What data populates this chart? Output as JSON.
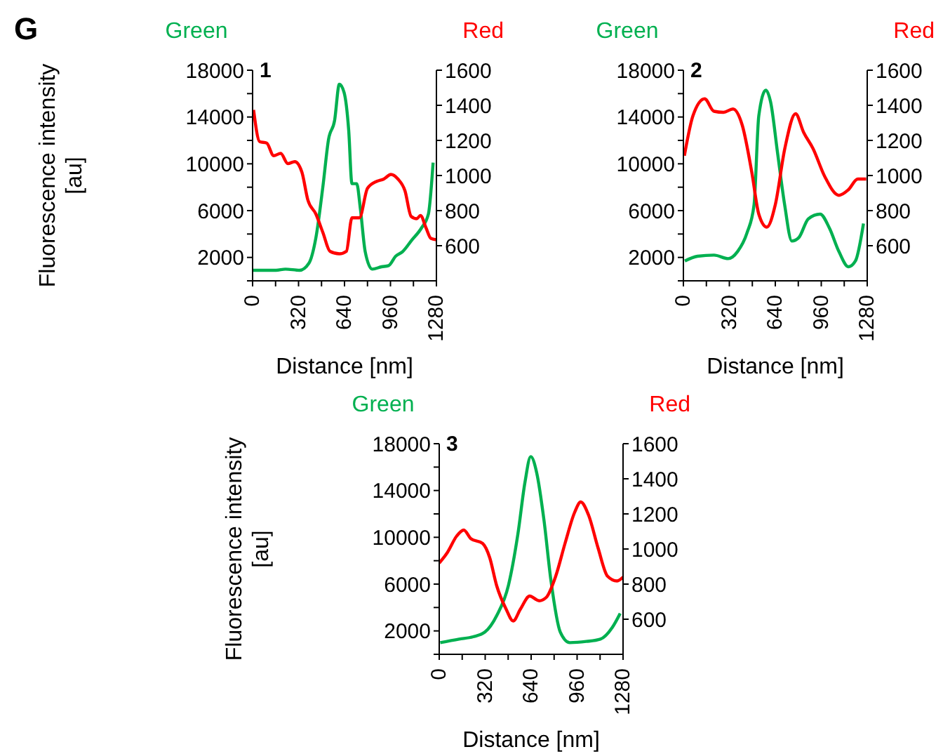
{
  "chart_data": [
    {
      "type": "line",
      "title": "1",
      "annotations": [
        "G"
      ],
      "xlabel": "Distance [nm]",
      "ylabel": "Fluorescence intensity [au]",
      "xlim": [
        0,
        1280
      ],
      "xticks": [
        0,
        {
          "value": 160,
          "label": null
        },
        320,
        {
          "value": 480,
          "label": null
        },
        640,
        {
          "value": 800,
          "label": null
        },
        960,
        {
          "value": 1120,
          "label": null
        },
        1280
      ],
      "ylim": [
        0,
        18000
      ],
      "yticks": [
        {
          "value": 0,
          "label": null
        },
        2000,
        {
          "value": 4000,
          "label": null
        },
        6000,
        {
          "value": 8000,
          "label": null
        },
        10000,
        {
          "value": 12000,
          "label": null
        },
        14000,
        {
          "value": 16000,
          "label": null
        },
        18000
      ],
      "y2lim": [
        400,
        1600
      ],
      "y2ticks": [
        600,
        800,
        1000,
        1200,
        1400,
        1600
      ],
      "grid": false,
      "legend": false,
      "marker": "none",
      "line_style": "solid",
      "series": [
        {
          "name": "Green",
          "color": "#00b050",
          "x": [
            0,
            163,
            229,
            327,
            392,
            441,
            490,
            529,
            571,
            604,
            637,
            669,
            692,
            725,
            751,
            784,
            833,
            898,
            947,
            996,
            1045,
            1110,
            1175,
            1224,
            1257
          ],
          "values": [
            900,
            900,
            1000,
            900,
            1500,
            3700,
            8100,
            12100,
            13700,
            16800,
            16100,
            12900,
            8300,
            8300,
            6100,
            2500,
            1000,
            1200,
            1300,
            2100,
            2500,
            3500,
            4500,
            5700,
            10100
          ]
        },
        {
          "name": "Red",
          "color": "#ff0000",
          "axis": "y2",
          "x": [
            7,
            49,
            98,
            147,
            196,
            245,
            294,
            343,
            385,
            441,
            490,
            539,
            604,
            653,
            692,
            744,
            800,
            865,
            914,
            963,
            1012,
            1061,
            1104,
            1143,
            1169,
            1208,
            1241,
            1280
          ],
          "values": [
            1374,
            1193,
            1185,
            1113,
            1126,
            1068,
            1079,
            1020,
            860,
            780,
            674,
            568,
            554,
            568,
            759,
            759,
            927,
            967,
            980,
            1006,
            980,
            913,
            767,
            754,
            772,
            701,
            642,
            634
          ]
        }
      ]
    },
    {
      "type": "line",
      "title": "2",
      "xlabel": "Distance [nm]",
      "xlim": [
        0,
        1280
      ],
      "xticks": [
        0,
        {
          "value": 160,
          "label": null
        },
        320,
        {
          "value": 480,
          "label": null
        },
        640,
        {
          "value": 800,
          "label": null
        },
        960,
        {
          "value": 1120,
          "label": null
        },
        1280
      ],
      "ylim": [
        0,
        18000
      ],
      "yticks": [
        {
          "value": 0,
          "label": null
        },
        2000,
        {
          "value": 4000,
          "label": null
        },
        6000,
        {
          "value": 8000,
          "label": null
        },
        10000,
        {
          "value": 12000,
          "label": null
        },
        14000,
        {
          "value": 16000,
          "label": null
        },
        18000
      ],
      "y2lim": [
        400,
        1600
      ],
      "y2ticks": [
        600,
        800,
        1000,
        1200,
        1400,
        1600
      ],
      "grid": false,
      "legend": false,
      "marker": "none",
      "line_style": "solid",
      "series": [
        {
          "name": "Green",
          "color": "#00b050",
          "x": [
            10,
            98,
            213,
            312,
            377,
            443,
            492,
            525,
            574,
            607,
            656,
            705,
            755,
            804,
            870,
            952,
            1017,
            1083,
            1149,
            1198,
            1254
          ],
          "values": [
            1700,
            2100,
            2200,
            1900,
            2500,
            4100,
            6500,
            14100,
            16300,
            15300,
            10900,
            6500,
            3400,
            3700,
            5300,
            5700,
            4500,
            2500,
            1200,
            1700,
            4900
          ]
        },
        {
          "name": "Red",
          "color": "#ff0000",
          "axis": "y2",
          "x": [
            7,
            66,
            148,
            213,
            279,
            345,
            410,
            476,
            525,
            581,
            640,
            706,
            781,
            837,
            903,
            985,
            1083,
            1149,
            1214,
            1273
          ],
          "values": [
            1113,
            1339,
            1437,
            1366,
            1360,
            1379,
            1286,
            1020,
            780,
            706,
            834,
            1153,
            1352,
            1246,
            1153,
            993,
            887,
            919,
            980,
            980
          ]
        }
      ]
    },
    {
      "type": "line",
      "title": "3",
      "xlabel": "Distance [nm]",
      "ylabel": "Fluorescence intensity [au]",
      "xlim": [
        0,
        1280
      ],
      "xticks": [
        0,
        {
          "value": 160,
          "label": null
        },
        320,
        {
          "value": 480,
          "label": null
        },
        640,
        {
          "value": 800,
          "label": null
        },
        960,
        {
          "value": 1120,
          "label": null
        },
        1280
      ],
      "ylim": [
        0,
        18000
      ],
      "yticks": [
        {
          "value": 0,
          "label": null
        },
        2000,
        {
          "value": 4000,
          "label": null
        },
        6000,
        {
          "value": 8000,
          "label": null
        },
        10000,
        {
          "value": 12000,
          "label": null
        },
        14000,
        {
          "value": 16000,
          "label": null
        },
        18000
      ],
      "y2lim": [
        400,
        1600
      ],
      "y2ticks": [
        600,
        800,
        1000,
        1200,
        1400,
        1600
      ],
      "grid": false,
      "legend": false,
      "marker": "none",
      "line_style": "solid",
      "series": [
        {
          "name": "Green",
          "color": "#00b050",
          "x": [
            7,
            138,
            236,
            318,
            400,
            482,
            548,
            597,
            637,
            679,
            729,
            778,
            843,
            909,
            1024,
            1122,
            1205,
            1260
          ],
          "values": [
            1000,
            1300,
            1500,
            1900,
            3300,
            5900,
            10300,
            14700,
            16900,
            15500,
            11500,
            6300,
            1900,
            1000,
            1100,
            1300,
            2300,
            3500
          ]
        },
        {
          "name": "Red",
          "color": "#ff0000",
          "axis": "y2",
          "x": [
            0,
            56,
            121,
            171,
            220,
            302,
            351,
            400,
            466,
            515,
            565,
            630,
            696,
            745,
            811,
            876,
            942,
            985,
            1040,
            1106,
            1172,
            1237,
            1280
          ],
          "values": [
            920,
            979,
            1073,
            1108,
            1059,
            1032,
            952,
            791,
            657,
            590,
            657,
            732,
            705,
            724,
            845,
            1032,
            1207,
            1268,
            1193,
            1006,
            845,
            818,
            840
          ]
        }
      ]
    }
  ]
}
